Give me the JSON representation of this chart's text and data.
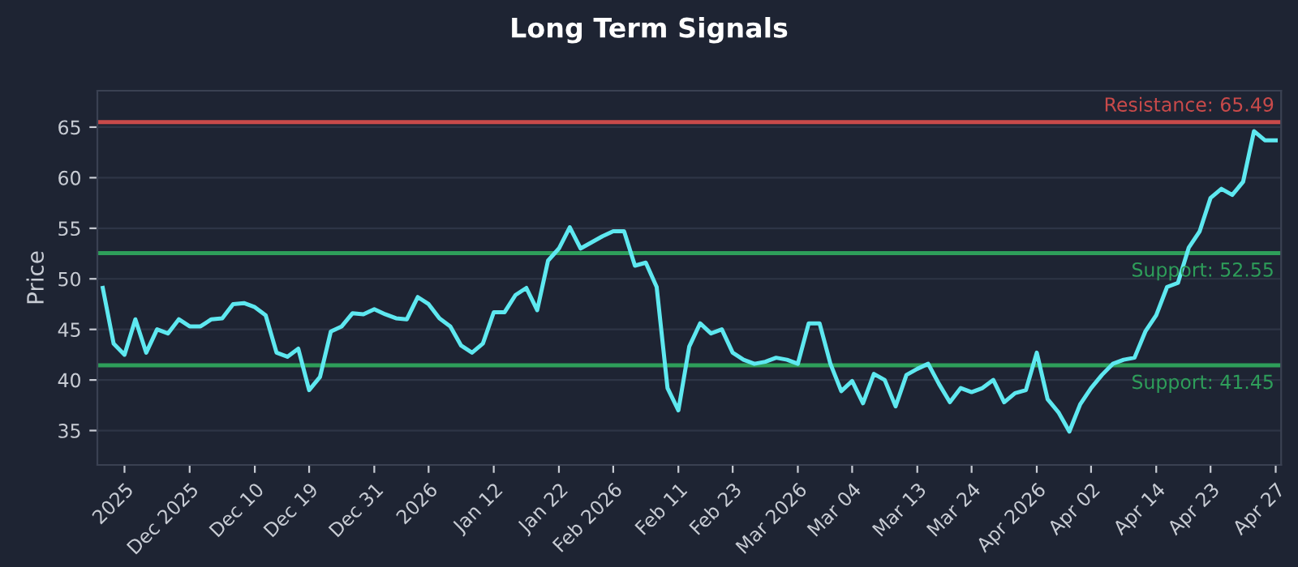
{
  "chart_data": {
    "type": "line",
    "title": "Long Term Signals",
    "ylabel": "Price",
    "categories": [
      null,
      null,
      "2025",
      null,
      null,
      null,
      null,
      null,
      "Dec 2025",
      null,
      null,
      null,
      null,
      null,
      "Dec 10",
      null,
      null,
      null,
      null,
      "Dec 19",
      null,
      null,
      null,
      null,
      null,
      "Dec 31",
      null,
      null,
      null,
      null,
      "2026",
      null,
      null,
      null,
      null,
      null,
      "Jan 12",
      null,
      null,
      null,
      null,
      null,
      "Jan 22",
      null,
      null,
      null,
      null,
      "Feb 2026",
      null,
      null,
      null,
      null,
      null,
      "Feb 11",
      null,
      null,
      null,
      null,
      "Feb 23",
      null,
      null,
      null,
      null,
      null,
      "Mar 2026",
      null,
      null,
      null,
      null,
      "Mar 04",
      null,
      null,
      null,
      null,
      null,
      "Mar 13",
      null,
      null,
      null,
      null,
      "Mar 24",
      null,
      null,
      null,
      null,
      null,
      "Apr 2026",
      null,
      null,
      null,
      null,
      "Apr 02",
      null,
      null,
      null,
      null,
      null,
      "Apr 14",
      null,
      null,
      null,
      null,
      "Apr 23",
      null,
      null,
      null,
      null,
      null,
      "Apr 27"
    ],
    "series": [
      {
        "color": "#5ee8f0",
        "values": [
          49.1,
          43.6,
          42.5,
          46.0,
          42.7,
          45.0,
          44.6,
          46.0,
          45.3,
          45.3,
          46.0,
          46.1,
          47.5,
          47.6,
          47.2,
          46.4,
          42.7,
          42.3,
          43.1,
          39.0,
          40.3,
          44.8,
          45.3,
          46.6,
          46.5,
          47.0,
          46.5,
          46.1,
          46.0,
          48.2,
          47.5,
          46.1,
          45.3,
          43.4,
          42.7,
          43.6,
          46.7,
          46.7,
          48.4,
          49.1,
          46.9,
          51.8,
          53.0,
          55.1,
          53.0,
          53.6,
          54.2,
          54.7,
          54.7,
          51.3,
          51.6,
          49.2,
          39.2,
          37.0,
          43.3,
          45.6,
          44.6,
          45.0,
          42.7,
          42.0,
          41.6,
          41.8,
          42.2,
          42.0,
          41.6,
          45.6,
          45.6,
          41.6,
          38.9,
          39.9,
          37.7,
          40.6,
          40.0,
          37.4,
          40.5,
          41.1,
          41.6,
          39.6,
          37.8,
          39.2,
          38.8,
          39.2,
          40.0,
          37.8,
          38.7,
          39.0,
          42.7,
          38.1,
          36.8,
          34.9,
          37.6,
          39.2,
          40.5,
          41.6,
          42.0,
          42.2,
          44.8,
          46.4,
          49.2,
          49.6,
          53.1,
          54.7,
          58.0,
          58.9,
          58.3,
          59.6,
          64.6,
          63.7,
          63.7
        ]
      }
    ],
    "ylim": [
      31.6,
      68.6
    ],
    "yticks": [
      35,
      40,
      45,
      50,
      55,
      60,
      65
    ],
    "grid": "y",
    "line_style": "solid",
    "ref_lines": [
      {
        "axis": "y",
        "value": 65.49,
        "label": "Resistance: 65.49",
        "color": "#c94a4a"
      },
      {
        "axis": "y",
        "value": 52.55,
        "label": "Support: 52.55",
        "color": "#2e9e5a"
      },
      {
        "axis": "y",
        "value": 41.45,
        "label": "Support: 41.45",
        "color": "#2e9e5a"
      }
    ]
  }
}
